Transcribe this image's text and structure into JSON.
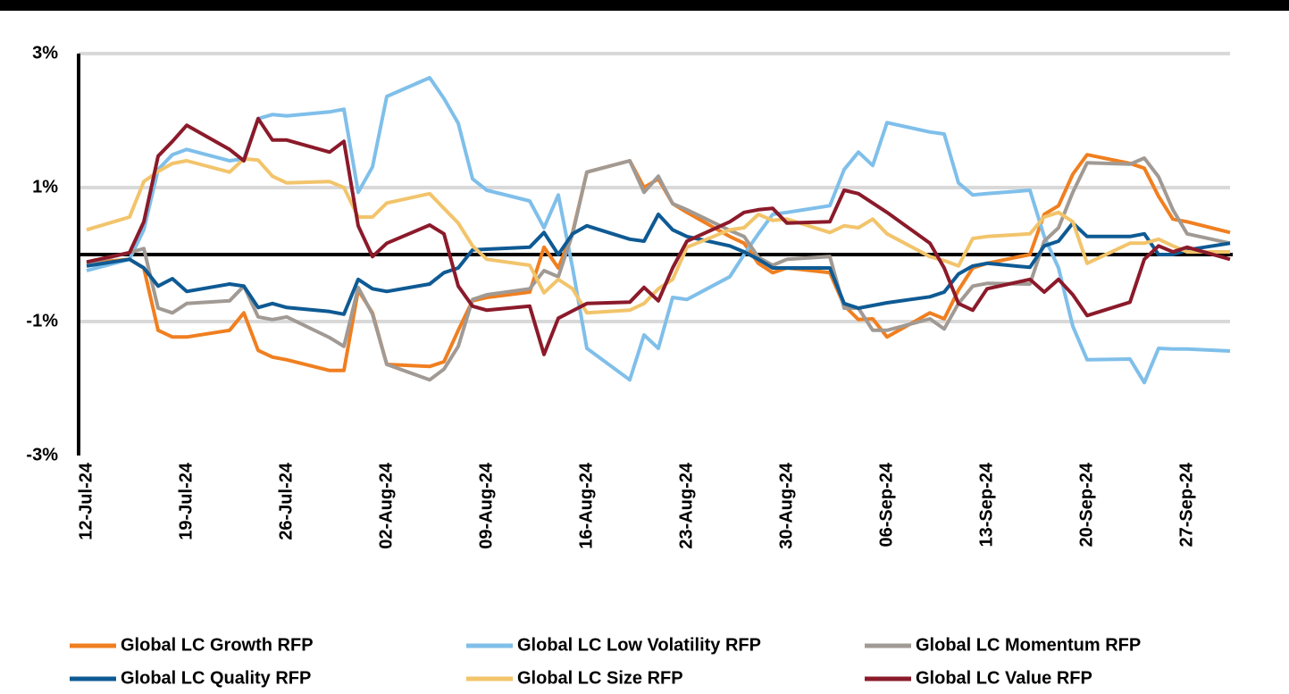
{
  "chart_data": {
    "type": "line",
    "x": [
      "2024-07-12",
      "2024-07-15",
      "2024-07-16",
      "2024-07-17",
      "2024-07-18",
      "2024-07-19",
      "2024-07-22",
      "2024-07-23",
      "2024-07-24",
      "2024-07-25",
      "2024-07-26",
      "2024-07-29",
      "2024-07-30",
      "2024-07-31",
      "2024-08-01",
      "2024-08-02",
      "2024-08-05",
      "2024-08-06",
      "2024-08-07",
      "2024-08-08",
      "2024-08-09",
      "2024-08-12",
      "2024-08-13",
      "2024-08-14",
      "2024-08-15",
      "2024-08-16",
      "2024-08-19",
      "2024-08-20",
      "2024-08-21",
      "2024-08-22",
      "2024-08-23",
      "2024-08-26",
      "2024-08-27",
      "2024-08-28",
      "2024-08-29",
      "2024-08-30",
      "2024-09-02",
      "2024-09-03",
      "2024-09-04",
      "2024-09-05",
      "2024-09-06",
      "2024-09-09",
      "2024-09-10",
      "2024-09-11",
      "2024-09-12",
      "2024-09-13",
      "2024-09-16",
      "2024-09-17",
      "2024-09-18",
      "2024-09-19",
      "2024-09-20",
      "2024-09-23",
      "2024-09-24",
      "2024-09-25",
      "2024-09-26",
      "2024-09-27",
      "2024-09-30"
    ],
    "xlim": [
      "2024-07-12",
      "2024-09-30"
    ],
    "xticks": [
      {
        "value": "2024-07-12",
        "label": "12-Jul-24"
      },
      {
        "value": "2024-07-19",
        "label": "19-Jul-24"
      },
      {
        "value": "2024-07-26",
        "label": "26-Jul-24"
      },
      {
        "value": "2024-08-02",
        "label": "02-Aug-24"
      },
      {
        "value": "2024-08-09",
        "label": "09-Aug-24"
      },
      {
        "value": "2024-08-16",
        "label": "16-Aug-24"
      },
      {
        "value": "2024-08-23",
        "label": "23-Aug-24"
      },
      {
        "value": "2024-08-30",
        "label": "30-Aug-24"
      },
      {
        "value": "2024-09-06",
        "label": "06-Sep-24"
      },
      {
        "value": "2024-09-13",
        "label": "13-Sep-24"
      },
      {
        "value": "2024-09-20",
        "label": "20-Sep-24"
      },
      {
        "value": "2024-09-27",
        "label": "27-Sep-24"
      }
    ],
    "ylim": [
      -3,
      3
    ],
    "yticks": [
      {
        "value": 3,
        "label": "3%"
      },
      {
        "value": 1,
        "label": "1%"
      },
      {
        "value": -1,
        "label": "-1%"
      },
      {
        "value": -3,
        "label": "-3%"
      }
    ],
    "grid": true,
    "legend": "bottom",
    "series": [
      {
        "name": "Global LC Growth RFP",
        "color": "#f07f20",
        "values": [
          -0.13,
          -0.07,
          -0.2,
          -1.13,
          -1.23,
          -1.23,
          -1.13,
          -0.87,
          -1.43,
          -1.53,
          -1.57,
          -1.73,
          -1.73,
          -0.53,
          -0.87,
          -1.64,
          -1.67,
          -1.6,
          -1.13,
          -0.69,
          -0.64,
          -0.56,
          0.11,
          -0.2,
          0.33,
          1.23,
          1.4,
          1.0,
          1.13,
          0.76,
          0.63,
          0.27,
          0.17,
          -0.13,
          -0.27,
          -0.2,
          -0.27,
          -0.76,
          -0.97,
          -0.96,
          -1.23,
          -0.87,
          -0.96,
          -0.53,
          -0.2,
          -0.13,
          0,
          0.6,
          0.73,
          1.2,
          1.49,
          1.36,
          1.29,
          0.87,
          0.53,
          0.49,
          0.33
        ]
      },
      {
        "name": "Global LC Low Volatility RFP",
        "color": "#7fbfea",
        "values": [
          -0.24,
          -0.07,
          0.37,
          1.27,
          1.49,
          1.57,
          1.4,
          1.43,
          2.03,
          2.09,
          2.07,
          2.13,
          2.17,
          0.93,
          1.31,
          2.36,
          2.64,
          2.33,
          1.96,
          1.13,
          0.96,
          0.8,
          0.4,
          0.89,
          -0.2,
          -1.4,
          -1.87,
          -1.2,
          -1.4,
          -0.64,
          -0.67,
          -0.33,
          0,
          0.31,
          0.6,
          0.63,
          0.73,
          1.27,
          1.53,
          1.33,
          1.97,
          1.83,
          1.8,
          1.07,
          0.89,
          0.91,
          0.96,
          0.27,
          -0.2,
          -1.07,
          -1.57,
          -1.56,
          -1.91,
          -1.4,
          -1.41,
          -1.41,
          -1.44
        ]
      },
      {
        "name": "Global LC Momentum RFP",
        "color": "#a19a94",
        "values": [
          -0.13,
          0.03,
          0.09,
          -0.8,
          -0.87,
          -0.73,
          -0.69,
          -0.47,
          -0.93,
          -0.97,
          -0.93,
          -1.24,
          -1.37,
          -0.49,
          -0.89,
          -1.64,
          -1.87,
          -1.71,
          -1.37,
          -0.67,
          -0.6,
          -0.51,
          -0.24,
          -0.33,
          0.31,
          1.23,
          1.4,
          0.93,
          1.17,
          0.76,
          0.67,
          0.36,
          0.27,
          -0.04,
          -0.16,
          -0.07,
          -0.03,
          -0.8,
          -0.8,
          -1.13,
          -1.13,
          -0.96,
          -1.11,
          -0.73,
          -0.47,
          -0.43,
          -0.44,
          0.2,
          0.4,
          0.93,
          1.37,
          1.35,
          1.44,
          1.16,
          0.67,
          0.31,
          0.17
        ]
      },
      {
        "name": "Global LC Quality RFP",
        "color": "#0e5a94",
        "values": [
          -0.17,
          -0.07,
          -0.2,
          -0.47,
          -0.36,
          -0.55,
          -0.44,
          -0.47,
          -0.79,
          -0.73,
          -0.79,
          -0.85,
          -0.89,
          -0.37,
          -0.51,
          -0.55,
          -0.44,
          -0.27,
          -0.2,
          0.07,
          0.08,
          0.11,
          0.33,
          0,
          0.31,
          0.43,
          0.23,
          0.2,
          0.6,
          0.37,
          0.27,
          0.13,
          0.04,
          -0.07,
          -0.2,
          -0.2,
          -0.2,
          -0.73,
          -0.8,
          -0.76,
          -0.72,
          -0.63,
          -0.56,
          -0.29,
          -0.17,
          -0.13,
          -0.19,
          0.13,
          0.2,
          0.47,
          0.27,
          0.27,
          0.31,
          0,
          0,
          0.07,
          0.17
        ]
      },
      {
        "name": "Global LC Size RFP",
        "color": "#f2c46b",
        "values": [
          0.37,
          0.56,
          1.09,
          1.24,
          1.36,
          1.4,
          1.23,
          1.43,
          1.41,
          1.17,
          1.07,
          1.09,
          1.0,
          0.56,
          0.56,
          0.77,
          0.91,
          0.69,
          0.47,
          0.13,
          -0.07,
          -0.16,
          -0.57,
          -0.37,
          -0.51,
          -0.87,
          -0.83,
          -0.73,
          -0.51,
          -0.37,
          0.11,
          0.37,
          0.4,
          0.6,
          0.51,
          0.53,
          0.33,
          0.43,
          0.4,
          0.53,
          0.31,
          -0.03,
          -0.09,
          -0.17,
          0.24,
          0.27,
          0.31,
          0.56,
          0.63,
          0.49,
          -0.13,
          0.17,
          0.17,
          0.23,
          0.13,
          0.04,
          0.04
        ]
      },
      {
        "name": "Global LC Value RFP",
        "color": "#8b1a2a",
        "values": [
          -0.11,
          0.03,
          0.49,
          1.47,
          1.69,
          1.93,
          1.57,
          1.4,
          2.03,
          1.71,
          1.71,
          1.53,
          1.69,
          0.43,
          -0.03,
          0.17,
          0.44,
          0.31,
          -0.47,
          -0.77,
          -0.83,
          -0.77,
          -1.49,
          -0.95,
          -0.84,
          -0.73,
          -0.71,
          -0.49,
          -0.69,
          -0.2,
          0.2,
          0.49,
          0.63,
          0.67,
          0.69,
          0.47,
          0.49,
          0.96,
          0.91,
          0.77,
          0.63,
          0.17,
          -0.2,
          -0.73,
          -0.83,
          -0.51,
          -0.37,
          -0.56,
          -0.37,
          -0.6,
          -0.91,
          -0.71,
          -0.07,
          0.13,
          0.04,
          0.11,
          -0.07
        ]
      }
    ]
  }
}
